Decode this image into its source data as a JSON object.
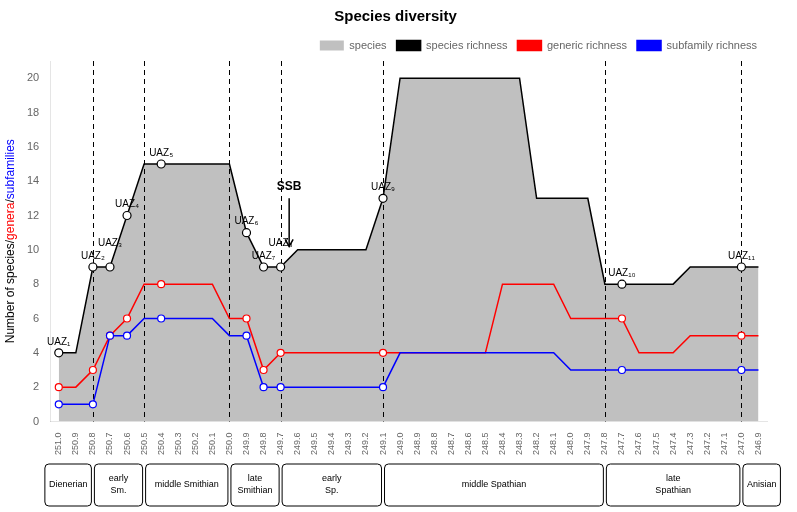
{
  "chart_data": {
    "type": "line",
    "title": "Species diversity",
    "ylabel": [
      {
        "text": "Number of species/",
        "color": "black"
      },
      {
        "text": "genera",
        "color": "red"
      },
      {
        "text": "/",
        "color": "black"
      },
      {
        "text": "subfamilies",
        "color": "blue"
      }
    ],
    "categories": [
      "251.0",
      "250.9",
      "250.8",
      "250.7",
      "250.6",
      "250.5",
      "250.4",
      "250.3",
      "250.2",
      "250.1",
      "250.0",
      "249.9",
      "249.8",
      "249.7",
      "249.6",
      "249.5",
      "249.4",
      "249.3",
      "249.2",
      "249.1",
      "249.0",
      "248.9",
      "248.8",
      "248.7",
      "248.6",
      "248.5",
      "248.4",
      "248.3",
      "248.2",
      "248.1",
      "248.0",
      "247.9",
      "247.8",
      "247.7",
      "247.6",
      "247.5",
      "247.4",
      "247.3",
      "247.2",
      "247.1",
      "247.0",
      "246.9"
    ],
    "series": [
      {
        "name": "species",
        "type": "area",
        "color": "#c0c0c0",
        "values": [
          4,
          4,
          9,
          9,
          12,
          15,
          15,
          15,
          15,
          15,
          15,
          11,
          9,
          9,
          10,
          10,
          10,
          10,
          10,
          13,
          20,
          20,
          20,
          20,
          20,
          20,
          20,
          20,
          13,
          13,
          13,
          13,
          8,
          8,
          8,
          8,
          8,
          9,
          9,
          9,
          9,
          9
        ]
      },
      {
        "name": "species richness",
        "type": "line",
        "color": "black",
        "marker": "circle",
        "values": [
          4,
          4,
          9,
          9,
          12,
          15,
          15,
          15,
          15,
          15,
          15,
          11,
          9,
          9,
          10,
          10,
          10,
          10,
          10,
          13,
          20,
          20,
          20,
          20,
          20,
          20,
          20,
          20,
          13,
          13,
          13,
          13,
          8,
          8,
          8,
          8,
          8,
          9,
          9,
          9,
          9,
          9
        ]
      },
      {
        "name": "generic richness",
        "type": "line",
        "color": "red",
        "marker": "circle",
        "values": [
          2,
          2,
          3,
          5,
          6,
          8,
          8,
          8,
          8,
          8,
          6,
          6,
          3,
          4,
          4,
          4,
          4,
          4,
          4,
          4,
          4,
          4,
          4,
          4,
          4,
          4,
          8,
          8,
          8,
          8,
          6,
          6,
          6,
          6,
          4,
          4,
          4,
          5,
          5,
          5,
          5,
          5
        ]
      },
      {
        "name": "subfamily richness",
        "type": "line",
        "color": "blue",
        "marker": "circle",
        "values": [
          1,
          1,
          1,
          5,
          5,
          6,
          6,
          6,
          6,
          6,
          5,
          5,
          2,
          2,
          2,
          2,
          2,
          2,
          2,
          2,
          4,
          4,
          4,
          4,
          4,
          4,
          4,
          4,
          4,
          4,
          3,
          3,
          3,
          3,
          3,
          3,
          3,
          3,
          3,
          3,
          3,
          3
        ]
      }
    ],
    "ylim": [
      0,
      21
    ],
    "yticks": [
      0,
      2,
      4,
      6,
      8,
      10,
      12,
      14,
      16,
      18,
      20
    ],
    "grid": false,
    "legend": "upper right",
    "annotations": [
      {
        "text": "UAZ₁",
        "x": "251.0"
      },
      {
        "text": "UAZ₂",
        "x": "250.8"
      },
      {
        "text": "UAZ₃",
        "x": "250.7"
      },
      {
        "text": "UAZ₄",
        "x": "250.6"
      },
      {
        "text": "UAZ₅",
        "x": "250.4"
      },
      {
        "text": "UAZ₆",
        "x": "249.9"
      },
      {
        "text": "UAZ₇",
        "x": "249.8"
      },
      {
        "text": "UAZ₈",
        "x": "249.7"
      },
      {
        "text": "UAZ₉",
        "x": "249.1"
      },
      {
        "text": "UAZ₁₀",
        "x": "247.7"
      },
      {
        "text": "UAZ₁₁",
        "x": "247.0"
      },
      {
        "text": "SSB",
        "x": [
          "249.7",
          "249.6"
        ],
        "y": 13.3,
        "arrow": [
          13.0,
          10.2
        ]
      }
    ],
    "vlines": {
      "x": [
        "250.8",
        "250.5",
        "250.0",
        "249.7",
        "249.1",
        "247.8",
        "247.0"
      ],
      "line_style": "dashed"
    },
    "stages": [
      {
        "label": "Dienerian",
        "from": "251.0",
        "to": "250.8"
      },
      {
        "label": "early\nSm.",
        "from": "250.8",
        "to": "250.5"
      },
      {
        "label": "middle Smithian",
        "from": "250.5",
        "to": "250.0"
      },
      {
        "label": "late\nSmithian",
        "from": "250.0",
        "to": "249.7"
      },
      {
        "label": "early\nSp.",
        "from": "249.7",
        "to": "249.1"
      },
      {
        "label": "middle Spathian",
        "from": "249.1",
        "to": "247.8"
      },
      {
        "label": "late\nSpathian",
        "from": "247.8",
        "to": "247.0"
      },
      {
        "label": "Anisian",
        "from": "247.0",
        "to": "246.9"
      }
    ]
  }
}
